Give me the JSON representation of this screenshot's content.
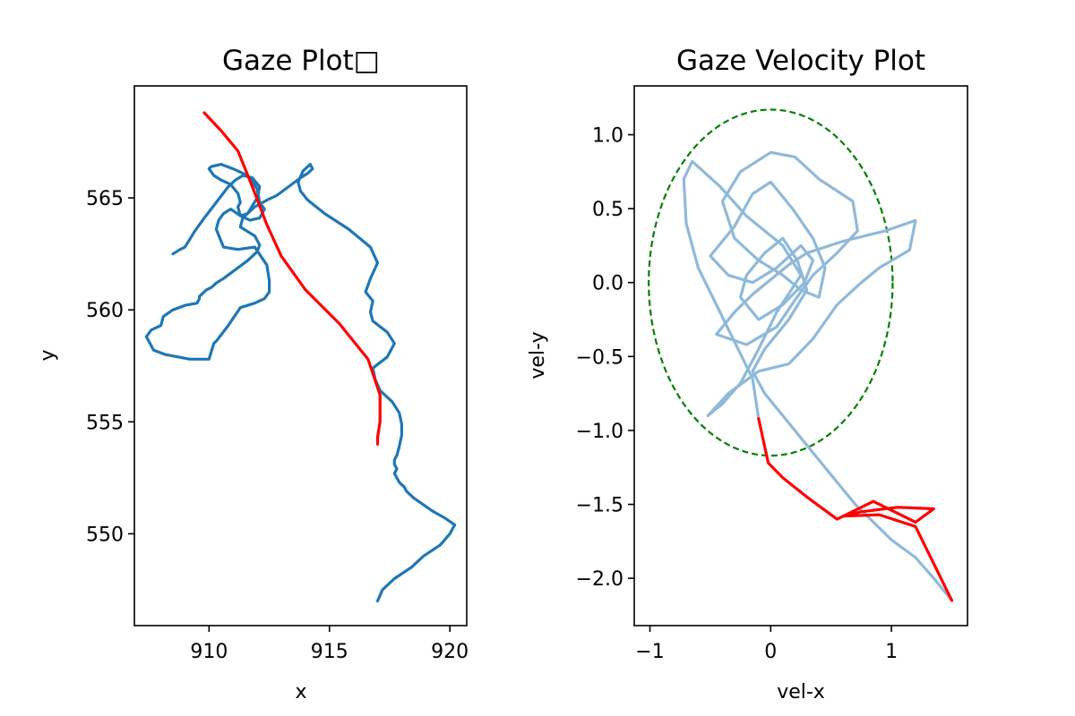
{
  "chart_data": [
    {
      "type": "line",
      "title": "Gaze Plot□",
      "xlabel": "x",
      "ylabel": "y",
      "xlim": [
        906.9,
        920.7
      ],
      "ylim": [
        545.9,
        570.0
      ],
      "xticks": [
        910,
        915,
        920
      ],
      "yticks": [
        550,
        555,
        560,
        565
      ],
      "series": [
        {
          "color": "#1f77b4",
          "x": [
            908.5,
            908.8,
            909.0,
            909.4,
            909.8,
            910.3,
            910.8,
            911.1,
            911.4,
            911.8,
            912.1,
            912.0,
            911.6,
            911.3,
            911.2,
            911.3,
            911.2,
            910.9,
            910.5,
            910.2,
            910.0,
            910.1,
            910.5,
            911.0,
            911.4,
            911.7,
            912.0,
            912.1,
            912.3,
            912.1,
            911.7,
            911.3,
            910.9,
            910.6,
            910.4,
            910.3,
            910.6,
            911.2,
            911.9,
            912.4,
            912.5,
            912.5,
            912.3,
            911.9,
            911.3,
            910.8,
            910.3,
            910.2,
            910.0,
            909.2,
            908.2,
            907.7,
            907.4,
            907.6,
            908.0,
            908.1,
            908.5,
            909.0,
            909.5,
            909.6,
            909.6,
            909.7,
            909.9,
            910.1,
            910.3,
            910.6,
            911.1,
            911.6,
            912.0,
            912.1,
            911.9,
            911.3,
            911.4,
            911.9,
            912.4,
            912.8,
            913.3,
            913.8,
            914.1,
            914.3,
            914.2,
            913.9,
            913.7,
            913.8,
            914.1,
            914.8,
            915.8,
            916.7,
            917.0,
            916.7,
            916.5,
            916.8,
            916.7,
            916.8,
            917.4,
            917.7,
            917.4,
            916.8,
            916.9,
            917.1,
            917.6,
            917.9,
            918.0,
            918.0,
            917.9,
            917.8,
            917.7,
            917.7,
            917.8,
            917.7,
            917.8,
            917.9,
            918.1,
            918.2,
            918.5,
            918.9,
            919.3,
            919.8,
            920.2,
            920.0,
            919.6,
            918.9,
            918.4,
            917.7,
            917.2,
            917.0
          ],
          "y": [
            562.5,
            562.7,
            562.8,
            563.5,
            564.1,
            564.8,
            565.5,
            565.8,
            566.0,
            565.9,
            565.5,
            565.0,
            564.3,
            564.2,
            564.6,
            564.8,
            565.2,
            565.6,
            565.8,
            566.0,
            566.3,
            566.4,
            566.5,
            566.3,
            566.1,
            565.9,
            565.4,
            564.8,
            564.5,
            564.1,
            564.0,
            564.2,
            564.5,
            564.3,
            564.0,
            563.6,
            562.8,
            562.7,
            562.8,
            562.0,
            561.3,
            560.8,
            560.5,
            560.3,
            560.1,
            559.3,
            558.6,
            558.5,
            557.8,
            557.8,
            558.0,
            558.2,
            558.8,
            559.1,
            559.3,
            559.7,
            560.0,
            560.2,
            560.3,
            560.5,
            560.6,
            560.7,
            560.9,
            561.0,
            561.2,
            561.4,
            561.8,
            562.2,
            562.6,
            562.9,
            563.3,
            563.7,
            564.1,
            564.6,
            564.9,
            565.1,
            565.5,
            565.9,
            566.1,
            566.3,
            566.5,
            566.2,
            565.7,
            565.3,
            564.9,
            564.3,
            563.6,
            562.8,
            562.1,
            561.4,
            560.8,
            560.4,
            559.9,
            559.5,
            559.0,
            558.5,
            557.9,
            557.4,
            556.9,
            556.4,
            555.9,
            555.4,
            554.9,
            554.4,
            553.9,
            553.5,
            553.3,
            553.1,
            552.9,
            552.7,
            552.5,
            552.3,
            552.1,
            551.9,
            551.6,
            551.3,
            551.0,
            550.7,
            550.4,
            550.0,
            549.5,
            549.0,
            548.5,
            548.0,
            547.5,
            547.0
          ],
          "note": ""
        },
        {
          "color": "#ff0000",
          "x": [
            909.8,
            910.5,
            911.2,
            911.8,
            912.4,
            913.0,
            914.0,
            915.4,
            916.6,
            917.1,
            917.1,
            917.0,
            917.0
          ],
          "y": [
            568.8,
            568.0,
            567.1,
            565.5,
            563.8,
            562.4,
            560.9,
            559.4,
            557.8,
            556.2,
            555.0,
            554.3,
            554.0
          ]
        }
      ]
    },
    {
      "type": "line",
      "title": "Gaze Velocity Plot",
      "xlabel": "vel-x",
      "ylabel": "vel-y",
      "xlim": [
        -1.13,
        1.63
      ],
      "ylim": [
        -2.32,
        1.33
      ],
      "xticks": [
        -1,
        0,
        1
      ],
      "yticks": [
        1.0,
        0.5,
        0.0,
        -0.5,
        -1.0,
        -1.5,
        -2.0
      ],
      "ellipse": {
        "cx": 0.0,
        "cy": 0.0,
        "rx": 1.01,
        "ry": 1.17,
        "color": "#008000",
        "style": "dashed"
      },
      "series": [
        {
          "color": "#8fb9d9",
          "x": [
            -0.1,
            -0.15,
            -0.3,
            -0.45,
            -0.6,
            -0.7,
            -0.72,
            -0.65,
            -0.42,
            -0.2,
            0.1,
            0.25,
            0.05,
            -0.1,
            -0.25,
            -0.4,
            -0.52,
            -0.35,
            -0.1,
            0.15,
            0.35,
            0.55,
            0.75,
            0.9,
            1.15,
            1.2,
            0.95,
            0.6,
            0.3,
            0.15,
            0.0,
            -0.15,
            -0.3,
            -0.45,
            -0.2,
            0.05,
            0.2,
            0.35,
            0.55,
            0.72,
            0.68,
            0.4,
            0.2,
            0.0,
            -0.25,
            -0.4,
            -0.3,
            -0.1,
            0.1,
            0.25,
            0.4,
            0.45,
            0.35,
            0.18,
            0.0,
            -0.15,
            -0.3,
            -0.5,
            -0.35,
            -0.15,
            0.05,
            0.25,
            0.35,
            0.28,
            0.1,
            -0.1,
            -0.25,
            -0.2,
            -0.05,
            0.1,
            0.22,
            0.3,
            0.15,
            -0.05,
            -0.15,
            -0.05,
            0.1,
            0.25,
            0.4,
            0.55,
            0.7,
            0.85,
            1.0,
            1.2,
            1.35,
            1.5
          ],
          "y": [
            -0.92,
            -0.65,
            -0.4,
            -0.15,
            0.1,
            0.4,
            0.7,
            0.82,
            0.65,
            0.45,
            0.25,
            0.05,
            -0.2,
            -0.45,
            -0.68,
            -0.82,
            -0.9,
            -0.75,
            -0.6,
            -0.55,
            -0.38,
            -0.15,
            0.0,
            0.1,
            0.22,
            0.42,
            0.35,
            0.28,
            0.2,
            0.12,
            0.02,
            -0.08,
            -0.2,
            -0.35,
            -0.42,
            -0.3,
            -0.12,
            0.05,
            0.2,
            0.35,
            0.55,
            0.7,
            0.85,
            0.88,
            0.75,
            0.55,
            0.3,
            0.15,
            0.05,
            -0.05,
            -0.1,
            0.1,
            0.3,
            0.5,
            0.68,
            0.6,
            0.38,
            0.18,
            0.05,
            0.0,
            0.1,
            0.25,
            0.15,
            0.0,
            -0.15,
            -0.25,
            -0.1,
            0.05,
            0.2,
            0.3,
            0.15,
            -0.05,
            -0.25,
            -0.45,
            -0.6,
            -0.75,
            -0.9,
            -1.05,
            -1.2,
            -1.35,
            -1.5,
            -1.62,
            -1.74,
            -1.86,
            -2.0,
            -2.15
          ],
          "note": ""
        },
        {
          "color": "#ff0000",
          "x": [
            -0.1,
            -0.02,
            0.1,
            0.3,
            0.55,
            0.85,
            1.2,
            1.35,
            1.05,
            0.75,
            0.6,
            0.9,
            1.2,
            1.5
          ],
          "y": [
            -0.92,
            -1.22,
            -1.32,
            -1.45,
            -1.6,
            -1.48,
            -1.62,
            -1.53,
            -1.52,
            -1.55,
            -1.58,
            -1.57,
            -1.65,
            -2.15
          ]
        }
      ]
    }
  ]
}
